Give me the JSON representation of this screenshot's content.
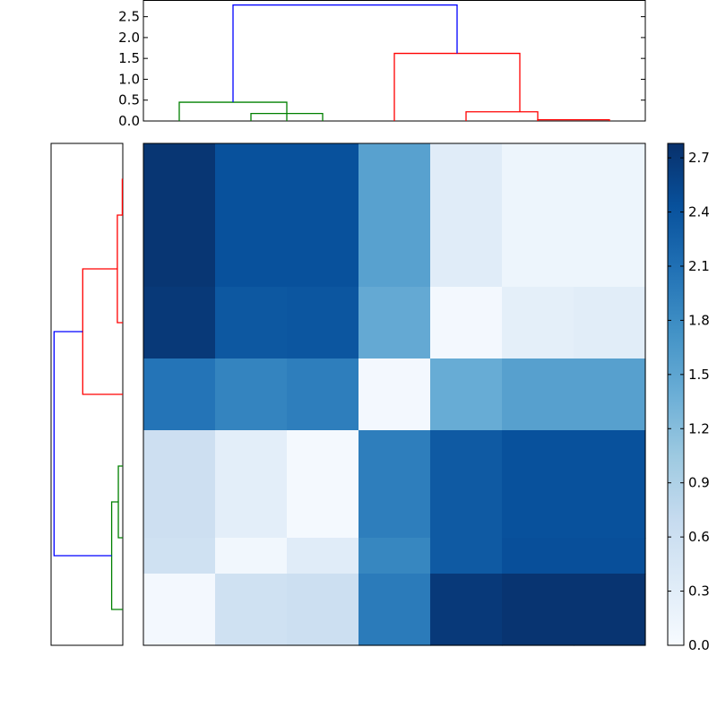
{
  "chart_data": [
    {
      "type": "heatmap",
      "title": "",
      "xlabel": "",
      "ylabel": "",
      "colormap": "Blues",
      "vmin": 0.0,
      "vmax": 2.78,
      "colorbar_ticks": [
        "0.0",
        "0.3",
        "0.6",
        "0.9",
        "1.2",
        "1.5",
        "1.8",
        "2.1",
        "2.4",
        "2.7"
      ],
      "rows": [
        {
          "span": [
            0,
            2
          ],
          "values": [
            2.72,
            2.43,
            2.43,
            1.55,
            0.32,
            0.14,
            0.14
          ]
        },
        {
          "span": [
            2,
            3
          ],
          "values": [
            2.69,
            2.36,
            2.38,
            1.45,
            0.06,
            0.26,
            0.3
          ]
        },
        {
          "span": [
            3,
            4
          ],
          "values": [
            2.05,
            1.88,
            1.95,
            0.06,
            1.42,
            1.56,
            1.56
          ]
        },
        {
          "span": [
            4,
            5.5
          ],
          "values": [
            0.6,
            0.28,
            0.04,
            1.95,
            2.33,
            2.43,
            2.43
          ]
        },
        {
          "span": [
            5.5,
            6
          ],
          "values": [
            0.56,
            0.08,
            0.32,
            1.85,
            2.34,
            2.45,
            2.45
          ]
        },
        {
          "span": [
            6,
            7
          ],
          "values": [
            0.06,
            0.56,
            0.61,
            1.98,
            2.68,
            2.74,
            2.74
          ]
        }
      ],
      "colorbar_range": [
        0.0,
        2.78
      ]
    },
    {
      "type": "dendrogram",
      "orientation": "top",
      "ylim": [
        0,
        2.9
      ],
      "yticks": [
        "0.0",
        "0.5",
        "1.0",
        "1.5",
        "2.0",
        "2.5"
      ],
      "links": [
        {
          "color": "#008000",
          "x": [
            0.5,
            0.5,
            2.0,
            2.0
          ],
          "h": [
            0.0,
            0.45,
            0.45,
            0.0
          ]
        },
        {
          "color": "#008000",
          "x": [
            1.5,
            1.5,
            2.5,
            2.5
          ],
          "h": [
            0.0,
            0.18,
            0.18,
            0.0
          ]
        },
        {
          "color": "#ff0000",
          "x": [
            4.5,
            4.5,
            5.5,
            5.5
          ],
          "h": [
            0.0,
            0.22,
            0.22,
            0.0
          ]
        },
        {
          "color": "#ff0000",
          "x": [
            5.5,
            5.5,
            6.5,
            6.5
          ],
          "h": [
            0.0,
            0.03,
            0.03,
            0.0
          ]
        },
        {
          "color": "#ff0000",
          "x": [
            3.5,
            3.5,
            5.25,
            5.25
          ],
          "h": [
            0.0,
            1.62,
            1.62,
            0.22
          ]
        },
        {
          "color": "#0000ff",
          "x": [
            1.25,
            1.25,
            4.375,
            4.375
          ],
          "h": [
            0.45,
            2.78,
            2.78,
            1.62
          ]
        }
      ]
    },
    {
      "type": "dendrogram",
      "orientation": "left",
      "xlim": [
        0,
        2.9
      ],
      "links": [
        {
          "color": "#ff0000",
          "y": [
            0.5,
            0.5,
            1.0,
            1.0
          ],
          "h": [
            0.0,
            0.02,
            0.02,
            0.0
          ]
        },
        {
          "color": "#ff0000",
          "y": [
            1.0,
            1.0,
            2.5,
            2.5
          ],
          "h": [
            0.0,
            0.22,
            0.22,
            0.0
          ]
        },
        {
          "color": "#ff0000",
          "y": [
            1.75,
            1.75,
            3.5,
            3.5
          ],
          "h": [
            0.22,
            1.62,
            1.62,
            0.0
          ]
        },
        {
          "color": "#008000",
          "y": [
            4.5,
            4.5,
            5.5,
            5.5
          ],
          "h": [
            0.0,
            0.18,
            0.18,
            0.0
          ]
        },
        {
          "color": "#008000",
          "y": [
            5.0,
            5.0,
            6.5,
            6.5
          ],
          "h": [
            0.18,
            0.45,
            0.45,
            0.0
          ]
        },
        {
          "color": "#0000ff",
          "y": [
            2.625,
            2.625,
            5.75,
            5.75
          ],
          "h": [
            1.62,
            2.78,
            2.78,
            0.45
          ]
        }
      ]
    }
  ]
}
